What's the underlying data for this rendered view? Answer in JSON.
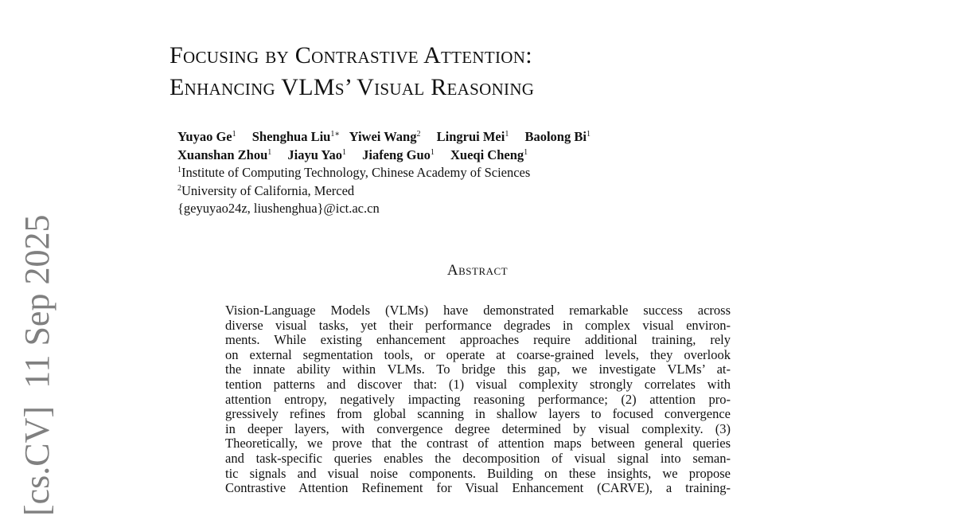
{
  "paper": {
    "title_lines": [
      "Focusing by Contrastive Attention:",
      "Enhancing VLMs’ Visual Reasoning"
    ],
    "authors": [
      {
        "name": "Yuyao Ge",
        "aff": "1"
      },
      {
        "name": "Shenghua Liu",
        "aff": "1∗"
      },
      {
        "name": "Yiwei Wang",
        "aff": "2"
      },
      {
        "name": "Lingrui Mei",
        "aff": "1"
      },
      {
        "name": "Baolong Bi",
        "aff": "1"
      },
      {
        "name": "Xuanshan Zhou",
        "aff": "1"
      },
      {
        "name": "Jiayu Yao",
        "aff": "1"
      },
      {
        "name": "Jiafeng Guo",
        "aff": "1"
      },
      {
        "name": "Xueqi Cheng",
        "aff": "1"
      }
    ],
    "affiliations": [
      {
        "mark": "1",
        "text": "Institute of Computing Technology, Chinese Academy of Sciences"
      },
      {
        "mark": "2",
        "text": "University of California, Merced"
      }
    ],
    "email": "{geyuyao24z, liushenghua}@ict.ac.cn",
    "abstract_heading": "Abstract",
    "abstract_lines": [
      "Vision-Language Models (VLMs) have demonstrated remarkable success across",
      "diverse visual tasks, yet their performance degrades in complex visual environ-",
      "ments. While existing enhancement approaches require additional training, rely",
      "on external segmentation tools, or operate at coarse-grained levels, they overlook",
      "the innate ability within VLMs. To bridge this gap, we investigate VLMs’ at-",
      "tention patterns and discover that: (1) visual complexity strongly correlates with",
      "attention entropy, negatively impacting reasoning performance; (2) attention pro-",
      "gressively refines from global scanning in shallow layers to focused convergence",
      "in deeper layers, with convergence degree determined by visual complexity. (3)",
      "Theoretically, we prove that the contrast of attention maps between general queries",
      "and task-specific queries enables the decomposition of visual signal into seman-",
      "tic signals and visual noise components. Building on these insights, we propose",
      "Contrastive Attention Refinement for Visual Enhancement (CARVE), a training-"
    ],
    "arxiv_stamp": "[cs.CV]  11 Sep 2025"
  }
}
